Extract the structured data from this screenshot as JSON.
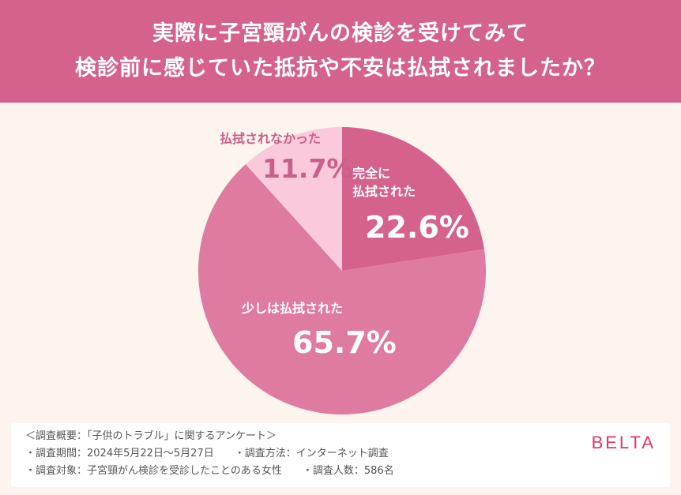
{
  "header": {
    "title_line1": "実際に子宮頸がんの検診を受けてみて",
    "title_line2": "検診前に感じていた抵抗や不安は払拭されましたか？",
    "background_color": "#d5628d"
  },
  "chart_data": {
    "type": "pie",
    "title": "実際に子宮頸がんの検診を受けてみて検診前に感じていた抵抗や不安は払拭されましたか？",
    "start_angle": "12 o'clock, clockwise",
    "slices": [
      {
        "label": "完全に払拭された",
        "value": 22.6,
        "display": "22.6%",
        "color": "#d5628d"
      },
      {
        "label": "少しは払拭された",
        "value": 65.7,
        "display": "65.7%",
        "color": "#df7aa0"
      },
      {
        "label": "払拭されなかった",
        "value": 11.7,
        "display": "11.7%",
        "color": "#fac9dc"
      }
    ],
    "legend": "none (labels inside slices)"
  },
  "labels": {
    "slice1_line1": "完全に",
    "slice1_line2": "払拭された",
    "slice1_value": "22.6%",
    "slice2_text": "少しは払拭された",
    "slice2_value": "65.7%",
    "slice3_text": "払拭されなかった",
    "slice3_value": "11.7%"
  },
  "footer": {
    "summary": "＜調査概要：「子供のトラブル」に関するアンケート＞",
    "period": "・調査期間：2024年5月22日〜5月27日",
    "method": "・調査方法：インターネット調査",
    "target": "・調査対象：子宮頸がん検診を受診したことのある女性",
    "count": "・調査人数：586名",
    "logo": "BELTA"
  }
}
